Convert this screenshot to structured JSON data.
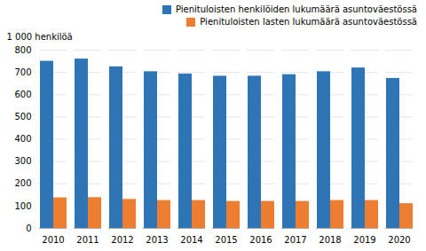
{
  "chart_data": {
    "type": "bar",
    "ylabel": "1 000 henkilöä",
    "categories": [
      "2010",
      "2011",
      "2012",
      "2013",
      "2014",
      "2015",
      "2016",
      "2017",
      "2018",
      "2019",
      "2020"
    ],
    "series": [
      {
        "name": "Pienituloisten henkilöiden lukumäärä asuntoväestössä",
        "color": "#2E75B6",
        "values": [
          750,
          760,
          725,
          703,
          693,
          683,
          683,
          690,
          703,
          720,
          673
        ]
      },
      {
        "name": "Pienituloisten lasten lukumäärä asuntoväestössä",
        "color": "#ED7D31",
        "values": [
          137,
          138,
          130,
          125,
          125,
          121,
          121,
          121,
          125,
          125,
          111
        ]
      }
    ],
    "ylim": [
      0,
      800
    ],
    "yticks": [
      0,
      100,
      200,
      300,
      400,
      500,
      600,
      700,
      800
    ],
    "grid": true,
    "legend": "upper right"
  }
}
